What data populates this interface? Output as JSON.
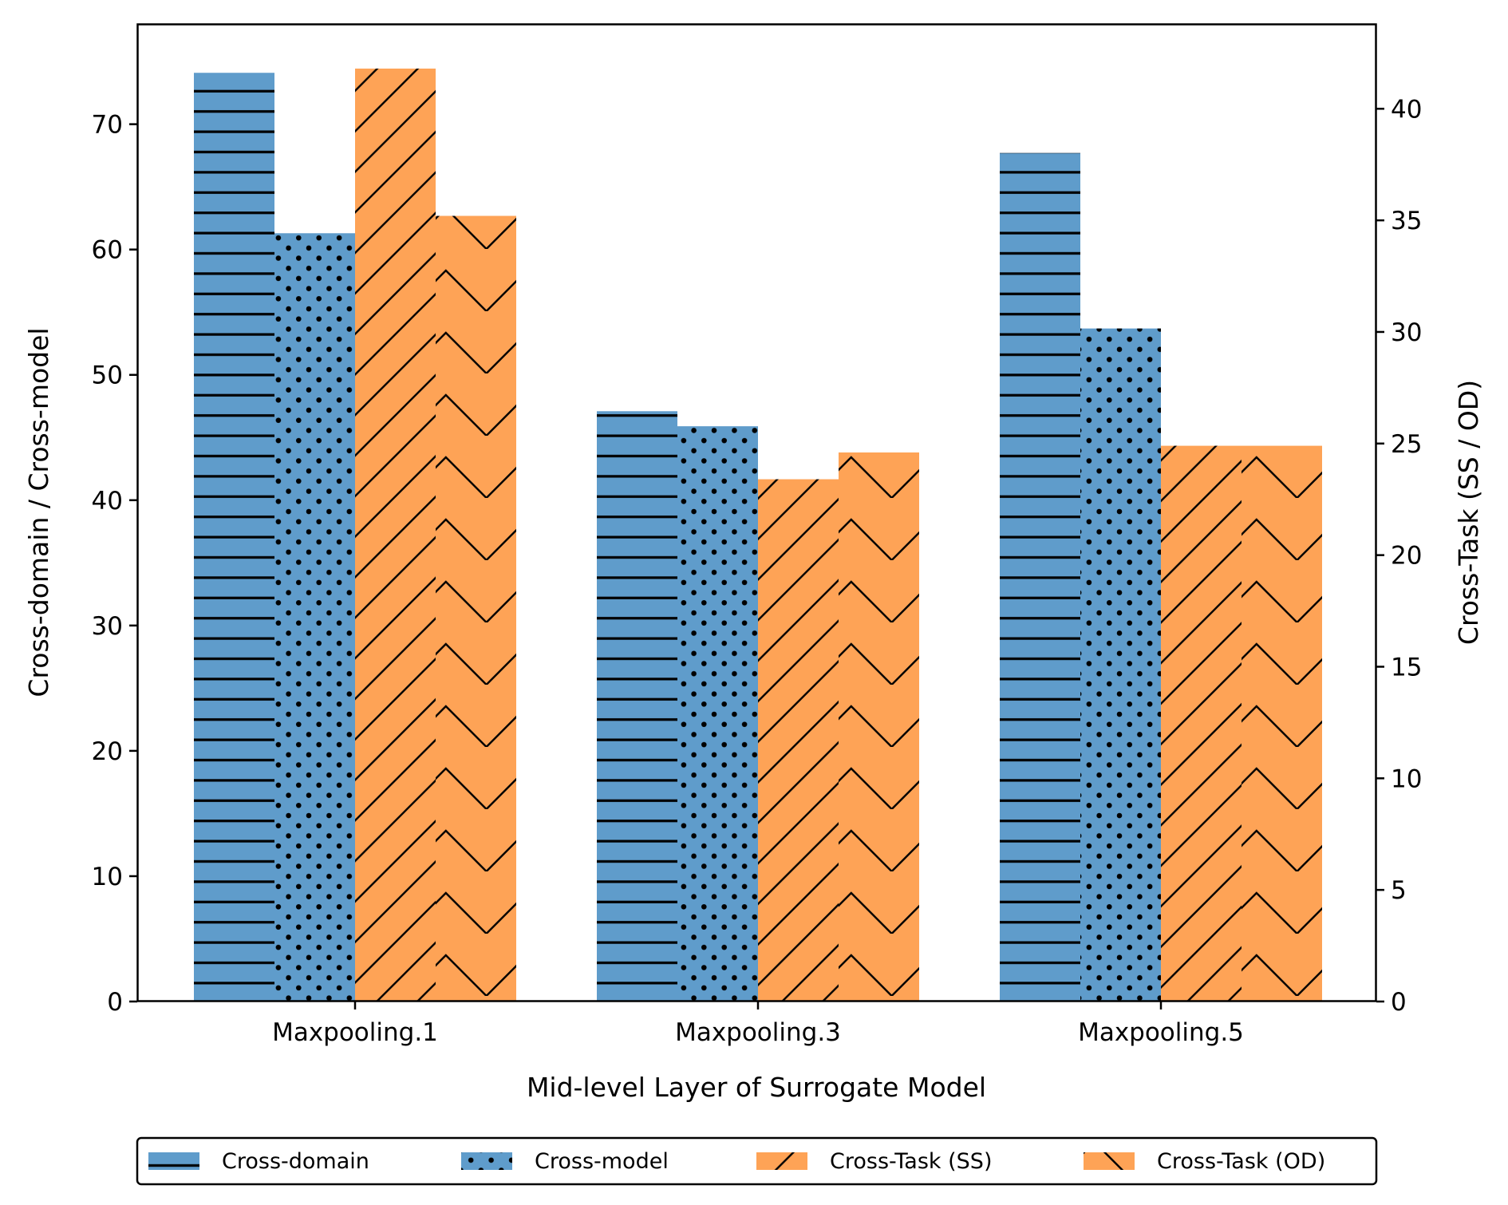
{
  "chart_data": {
    "type": "bar",
    "title": "",
    "categories": [
      "Maxpooling.1",
      "Maxpooling.3",
      "Maxpooling.5"
    ],
    "xlabel": "Mid-level Layer of Surrogate Model",
    "ylabel_left": "Cross-domain / Cross-model",
    "ylabel_right": "Cross-Task (SS / OD)",
    "ylim_left": [
      0,
      78
    ],
    "ylim_right": [
      0,
      43.8
    ],
    "yticks_left": [
      0,
      10,
      20,
      30,
      40,
      50,
      60,
      70
    ],
    "yticks_right": [
      0,
      5,
      10,
      15,
      20,
      25,
      30,
      35,
      40
    ],
    "series": [
      {
        "name": "Cross-domain",
        "axis": "left",
        "color": "#5f9ccb",
        "hatch": "horizontal",
        "values": [
          74.1,
          47.1,
          67.7
        ]
      },
      {
        "name": "Cross-model",
        "axis": "left",
        "color": "#5f9ccb",
        "hatch": "dots",
        "values": [
          61.3,
          45.9,
          53.7
        ]
      },
      {
        "name": "Cross-Task (SS)",
        "axis": "right",
        "color": "#fea356",
        "hatch": "diagonal",
        "values": [
          41.8,
          23.4,
          24.9
        ]
      },
      {
        "name": "Cross-Task (OD)",
        "axis": "right",
        "color": "#fea356",
        "hatch": "chevron",
        "values": [
          35.2,
          24.6,
          24.9
        ]
      }
    ],
    "legend_position": "bottom-center",
    "grid": false
  }
}
